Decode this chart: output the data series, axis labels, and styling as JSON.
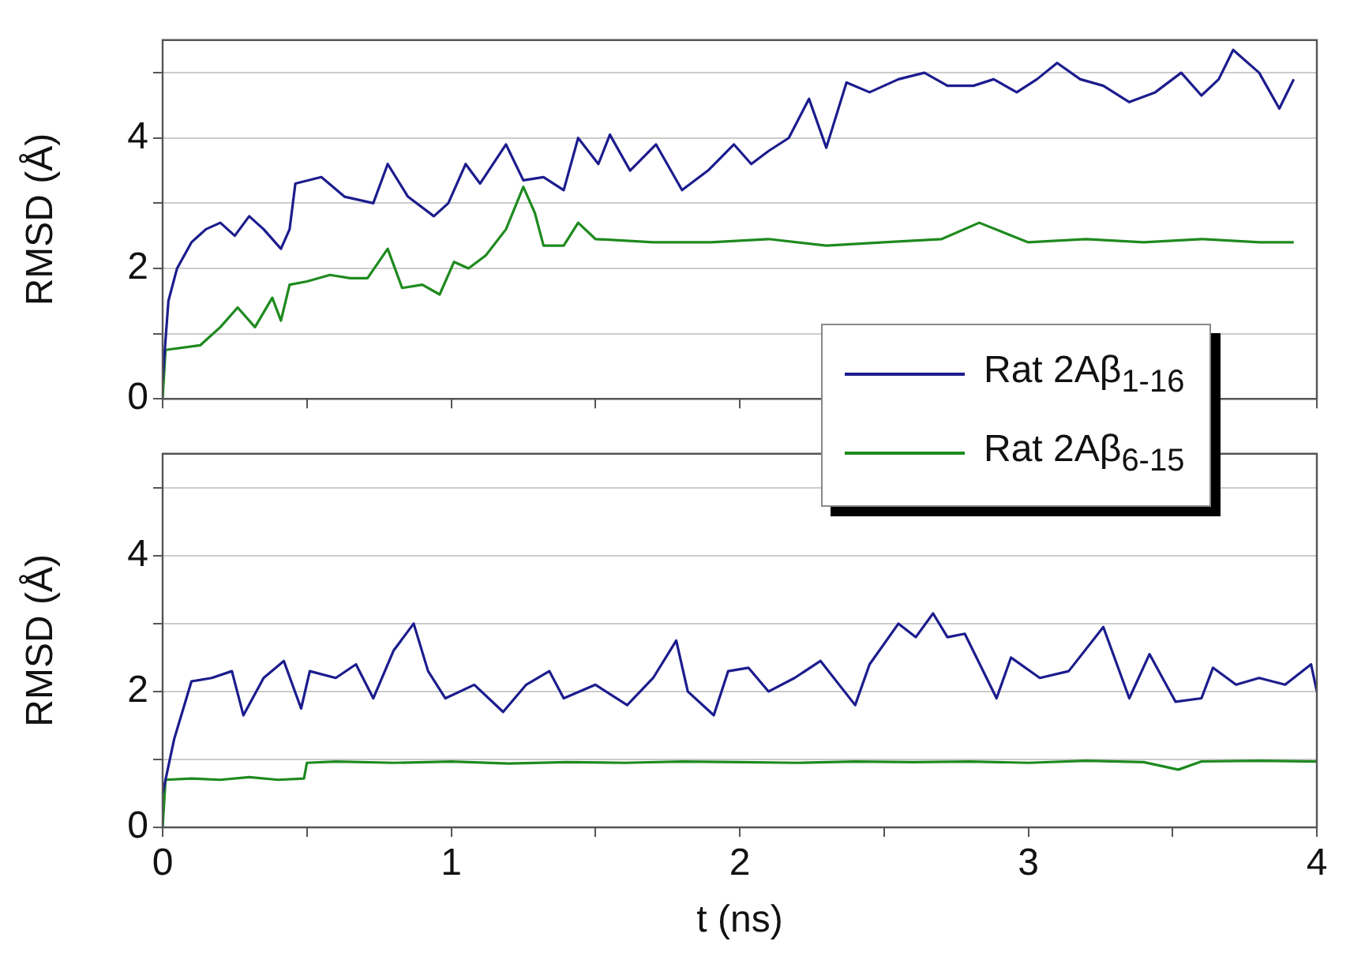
{
  "chart_data": [
    {
      "type": "line",
      "ylabel": "RMSD (Å)",
      "xlim": [
        0,
        4
      ],
      "xticks": [
        0,
        {
          "value": 0.5,
          "label": null
        },
        1,
        {
          "value": 1.5,
          "label": null
        },
        2,
        {
          "value": 2.5,
          "label": null
        },
        3,
        {
          "value": 3.5,
          "label": null
        },
        4
      ],
      "ylim": [
        0,
        5.5
      ],
      "yticks": [
        0,
        {
          "value": 1,
          "label": null
        },
        2,
        {
          "value": 3,
          "label": null
        },
        4,
        {
          "value": 5,
          "label": null
        }
      ],
      "grid": "y",
      "tick_labels": "y",
      "legend": "bottom right",
      "line_style": "solid",
      "marker": "none",
      "series": [
        {
          "name": "Rat 2Aβ$_{1-16}$",
          "color": "#1c1c8e",
          "x": [
            0,
            0.02,
            0.05,
            0.1,
            0.15,
            0.2,
            0.25,
            0.3,
            0.35,
            0.41,
            0.44,
            0.46,
            0.55,
            0.63,
            0.73,
            0.78,
            0.85,
            0.94,
            0.99,
            1.05,
            1.1,
            1.19,
            1.25,
            1.32,
            1.39,
            1.44,
            1.51,
            1.55,
            1.62,
            1.71,
            1.8,
            1.89,
            1.98,
            2.04,
            2.1,
            2.17,
            2.24,
            2.3,
            2.37,
            2.45,
            2.55,
            2.64,
            2.72,
            2.81,
            2.88,
            2.96,
            3.03,
            3.1,
            3.18,
            3.26,
            3.35,
            3.44,
            3.53,
            3.6,
            3.66,
            3.71,
            3.8,
            3.87,
            3.92
          ],
          "values": [
            0.3,
            1.5,
            2.0,
            2.4,
            2.6,
            2.7,
            2.5,
            2.8,
            2.6,
            2.3,
            2.6,
            3.3,
            3.4,
            3.1,
            3.0,
            3.6,
            3.1,
            2.8,
            3.0,
            3.6,
            3.3,
            3.9,
            3.35,
            3.4,
            3.2,
            4.0,
            3.6,
            4.05,
            3.5,
            3.9,
            3.2,
            3.5,
            3.9,
            3.6,
            3.8,
            4.0,
            4.6,
            3.85,
            4.85,
            4.7,
            4.9,
            5.0,
            4.8,
            4.8,
            4.9,
            4.7,
            4.9,
            5.15,
            4.9,
            4.8,
            4.55,
            4.7,
            5.0,
            4.65,
            4.9,
            5.35,
            5.0,
            4.45,
            4.9
          ]
        },
        {
          "name": "Rat 2Aβ$_{6-15}$",
          "color": "#1e8a1e",
          "x": [
            0,
            0.01,
            0.13,
            0.2,
            0.26,
            0.32,
            0.38,
            0.41,
            0.44,
            0.5,
            0.58,
            0.65,
            0.71,
            0.78,
            0.83,
            0.9,
            0.96,
            1.01,
            1.06,
            1.12,
            1.19,
            1.25,
            1.29,
            1.32,
            1.39,
            1.44,
            1.5,
            1.7,
            1.9,
            2.1,
            2.3,
            2.5,
            2.7,
            2.83,
            3.0,
            3.2,
            3.4,
            3.6,
            3.8,
            3.92
          ],
          "values": [
            0,
            0.75,
            0.82,
            1.1,
            1.4,
            1.1,
            1.55,
            1.2,
            1.75,
            1.8,
            1.9,
            1.85,
            1.85,
            2.3,
            1.7,
            1.75,
            1.6,
            2.1,
            2.0,
            2.2,
            2.6,
            3.25,
            2.85,
            2.35,
            2.35,
            2.7,
            2.45,
            2.4,
            2.4,
            2.45,
            2.35,
            2.4,
            2.45,
            2.7,
            2.4,
            2.45,
            2.4,
            2.45,
            2.4,
            2.4
          ]
        }
      ]
    },
    {
      "type": "line",
      "ylabel": "RMSD (Å)",
      "xlabel": "t (ns)",
      "xlim": [
        0,
        4
      ],
      "xticks": [
        0,
        {
          "value": 0.5,
          "label": null
        },
        1,
        {
          "value": 1.5,
          "label": null
        },
        2,
        {
          "value": 2.5,
          "label": null
        },
        3,
        {
          "value": 3.5,
          "label": null
        },
        4
      ],
      "ylim": [
        0,
        5.5
      ],
      "yticks": [
        0,
        {
          "value": 1,
          "label": null
        },
        2,
        {
          "value": 3,
          "label": null
        },
        4,
        {
          "value": 5,
          "label": null
        }
      ],
      "grid": "y",
      "line_style": "solid",
      "marker": "none",
      "series": [
        {
          "color": "#1c1c8e",
          "x": [
            0,
            0.04,
            0.1,
            0.17,
            0.24,
            0.28,
            0.35,
            0.42,
            0.48,
            0.51,
            0.6,
            0.67,
            0.73,
            0.8,
            0.87,
            0.92,
            0.98,
            1.08,
            1.18,
            1.26,
            1.34,
            1.39,
            1.5,
            1.61,
            1.7,
            1.78,
            1.82,
            1.91,
            1.96,
            2.03,
            2.1,
            2.19,
            2.28,
            2.4,
            2.45,
            2.55,
            2.61,
            2.67,
            2.72,
            2.78,
            2.89,
            2.94,
            3.04,
            3.14,
            3.26,
            3.35,
            3.42,
            3.51,
            3.6,
            3.64,
            3.72,
            3.8,
            3.89,
            3.98,
            4.0
          ],
          "values": [
            0.5,
            1.3,
            2.15,
            2.2,
            2.3,
            1.65,
            2.2,
            2.45,
            1.75,
            2.3,
            2.2,
            2.4,
            1.9,
            2.6,
            3.0,
            2.3,
            1.9,
            2.1,
            1.7,
            2.1,
            2.3,
            1.9,
            2.1,
            1.8,
            2.2,
            2.75,
            2.0,
            1.65,
            2.3,
            2.35,
            2.0,
            2.2,
            2.45,
            1.8,
            2.4,
            3.0,
            2.8,
            3.15,
            2.8,
            2.85,
            1.9,
            2.5,
            2.2,
            2.3,
            2.95,
            1.9,
            2.55,
            1.85,
            1.9,
            2.35,
            2.1,
            2.2,
            2.1,
            2.4,
            2.0
          ]
        },
        {
          "color": "#1e8a1e",
          "x": [
            0,
            0.01,
            0.1,
            0.2,
            0.3,
            0.4,
            0.49,
            0.5,
            0.6,
            0.8,
            1.0,
            1.2,
            1.4,
            1.6,
            1.8,
            2.0,
            2.2,
            2.4,
            2.6,
            2.8,
            3.0,
            3.2,
            3.4,
            3.52,
            3.6,
            3.8,
            4.0
          ],
          "values": [
            0,
            0.7,
            0.72,
            0.7,
            0.74,
            0.7,
            0.72,
            0.95,
            0.97,
            0.95,
            0.97,
            0.94,
            0.96,
            0.95,
            0.97,
            0.96,
            0.95,
            0.97,
            0.96,
            0.97,
            0.95,
            0.98,
            0.96,
            0.85,
            0.97,
            0.98,
            0.97
          ]
        }
      ]
    }
  ]
}
